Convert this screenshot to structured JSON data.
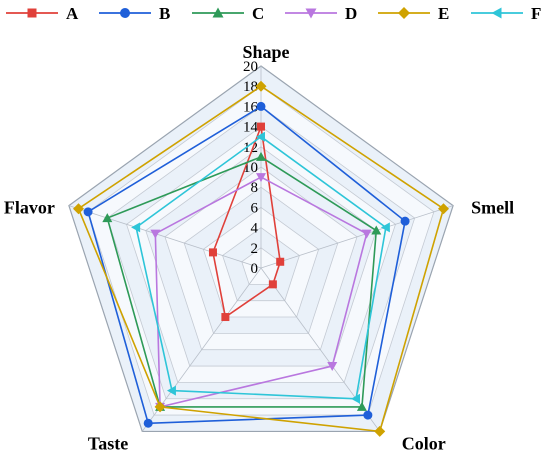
{
  "chart_data": {
    "type": "radar",
    "title": "",
    "axes": [
      "Shape",
      "Smell",
      "Color",
      "Taste",
      "Flavor"
    ],
    "rmax": 20,
    "ticks": [
      "0",
      "2",
      "4",
      "6",
      "8",
      "10",
      "12",
      "14",
      "16",
      "18",
      "20"
    ],
    "grid": true,
    "legend_position": "top",
    "series": [
      {
        "name": "A",
        "color": "#e0403a",
        "marker": "square",
        "values": [
          14,
          2,
          2,
          6,
          5
        ]
      },
      {
        "name": "B",
        "color": "#1f5fd9",
        "marker": "circle",
        "values": [
          16,
          15,
          18,
          19,
          18
        ]
      },
      {
        "name": "C",
        "color": "#2e9a58",
        "marker": "triangle-up",
        "values": [
          11,
          12,
          17,
          17,
          16
        ]
      },
      {
        "name": "D",
        "color": "#b977df",
        "marker": "triangle-down",
        "values": [
          9,
          11,
          12,
          17,
          11
        ]
      },
      {
        "name": "E",
        "color": "#cfa200",
        "marker": "diamond",
        "values": [
          18,
          19,
          20,
          17,
          19
        ]
      },
      {
        "name": "F",
        "color": "#2ec5d8",
        "marker": "triangle-left",
        "values": [
          13,
          13,
          16,
          15,
          13
        ]
      }
    ]
  }
}
